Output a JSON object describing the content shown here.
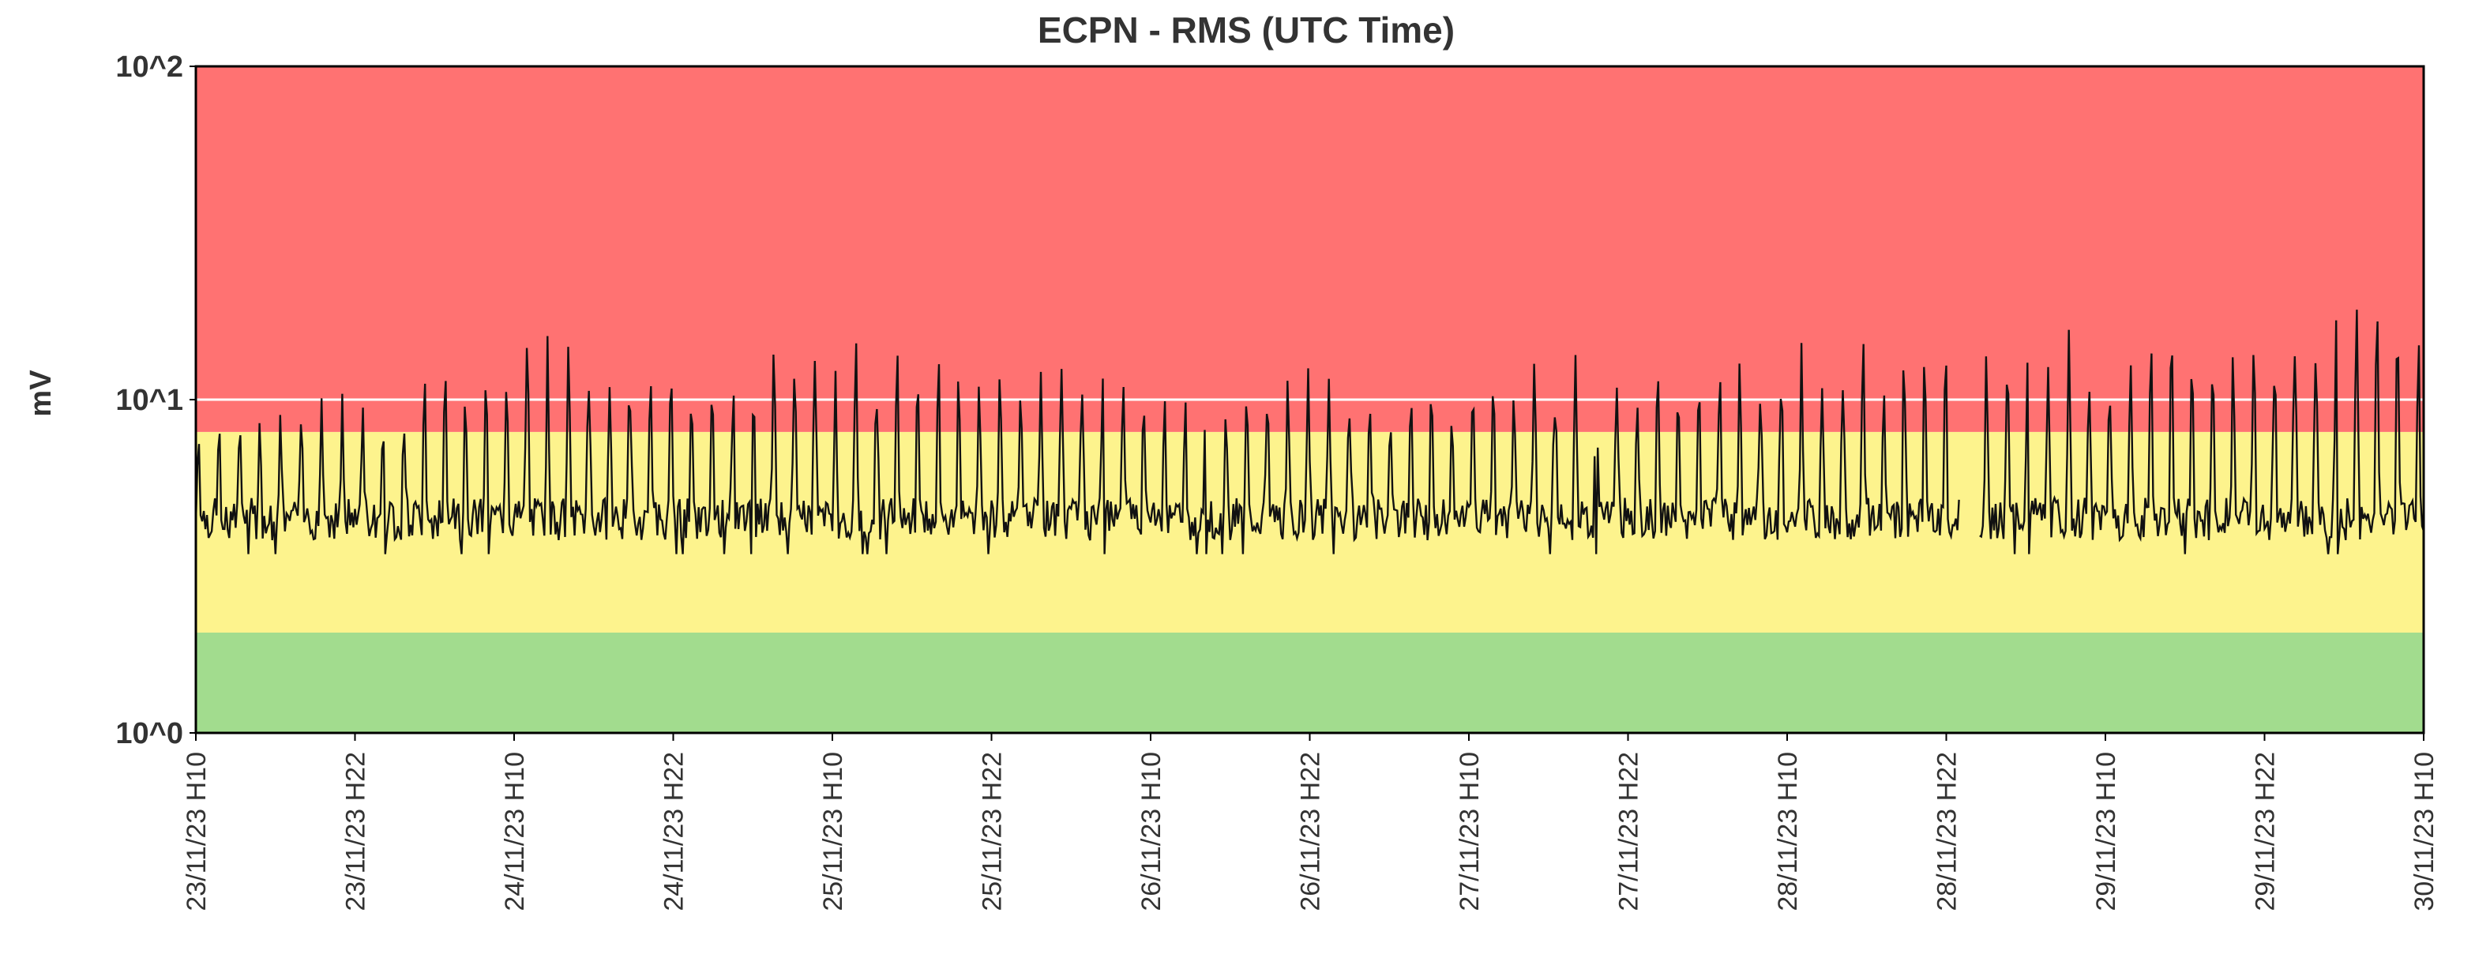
{
  "chart_data": {
    "type": "line",
    "title": "ECPN - RMS (UTC Time)",
    "ylabel": "mV",
    "xlabel": "",
    "y_scale": "log",
    "ylim": [
      1,
      100
    ],
    "y_ticks": [
      "10^0",
      "10^1",
      "10^2"
    ],
    "x_range": [
      "2023-11-23T10:00",
      "2023-11-30T10:00"
    ],
    "x_ticks": [
      "23/11/23 H10",
      "23/11/23 H22",
      "24/11/23 H10",
      "24/11/23 H22",
      "25/11/23 H10",
      "25/11/23 H22",
      "26/11/23 H10",
      "26/11/23 H22",
      "27/11/23 H10",
      "27/11/23 H22",
      "28/11/23 H10",
      "28/11/23 H22",
      "29/11/23 H10",
      "29/11/23 H22",
      "30/11/23 H10"
    ],
    "grid": false,
    "reference_line": 10,
    "bands": [
      {
        "from": 1,
        "to": 2,
        "color": "#a2dc8e"
      },
      {
        "from": 2,
        "to": 8,
        "color": "#fdf38d"
      },
      {
        "from": 8,
        "to": 100,
        "color": "#ff7272"
      }
    ],
    "series": [
      {
        "line_color": "#111111",
        "baseline_mV": 4.3,
        "spike_period_hours": 1.55,
        "gap": [
          "2023-11-28T23:00",
          "2023-11-29T00:30"
        ],
        "x": [
          "2023-11-23T10:00",
          "2023-11-23T22:00",
          "2023-11-24T10:00",
          "2023-11-24T22:00",
          "2023-11-25T10:00",
          "2023-11-25T22:00",
          "2023-11-26T10:00",
          "2023-11-26T22:00",
          "2023-11-27T10:00",
          "2023-11-27T22:00",
          "2023-11-28T10:00",
          "2023-11-28T22:00",
          "2023-11-29T10:00",
          "2023-11-29T22:00",
          "2023-11-30T10:00"
        ],
        "peaks": [
          10.5,
          11,
          19,
          14,
          16,
          17,
          13,
          13,
          13,
          16,
          16,
          19,
          16,
          20,
          22
        ]
      }
    ]
  }
}
